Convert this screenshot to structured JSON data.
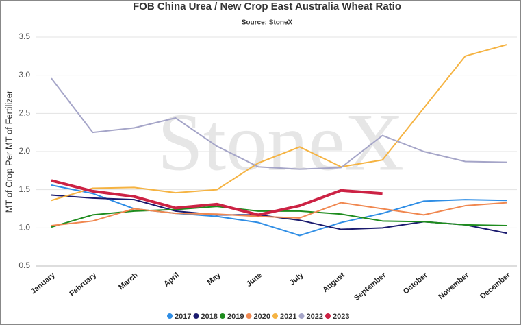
{
  "chart_data": {
    "type": "line",
    "title": "FOB China Urea / New Crop East Australia Wheat Ratio",
    "subtitle": "Source: StoneX",
    "watermark": "StoneX",
    "y_label": "MT of Crop Per MT of Fertilizer",
    "categories": [
      "January",
      "February",
      "March",
      "April",
      "May",
      "June",
      "July",
      "August",
      "September",
      "October",
      "November",
      "December"
    ],
    "series": [
      {
        "name": "2017",
        "color": "#2e8de5",
        "values": [
          1.56,
          1.45,
          1.25,
          1.19,
          1.15,
          1.07,
          0.9,
          1.07,
          1.19,
          1.35,
          1.37,
          1.36
        ]
      },
      {
        "name": "2018",
        "color": "#1a1a6e",
        "values": [
          1.43,
          1.39,
          1.37,
          1.22,
          1.17,
          1.17,
          1.1,
          0.98,
          1.0,
          1.08,
          1.04,
          0.93
        ]
      },
      {
        "name": "2019",
        "color": "#1e8c1e",
        "values": [
          1.01,
          1.17,
          1.22,
          1.24,
          1.28,
          1.22,
          1.22,
          1.18,
          1.09,
          1.08,
          1.04,
          1.03
        ]
      },
      {
        "name": "2020",
        "color": "#f0874f",
        "values": [
          1.03,
          1.09,
          1.25,
          1.19,
          1.18,
          1.15,
          1.13,
          1.33,
          1.25,
          1.17,
          1.29,
          1.33
        ]
      },
      {
        "name": "2021",
        "color": "#f5b342",
        "values": [
          1.36,
          1.52,
          1.53,
          1.46,
          1.5,
          1.85,
          2.06,
          1.8,
          1.89,
          2.57,
          3.25,
          3.4
        ]
      },
      {
        "name": "2022",
        "color": "#a5a5c8",
        "values": [
          2.96,
          2.25,
          2.31,
          2.44,
          2.07,
          1.8,
          1.77,
          1.79,
          2.21,
          2.0,
          1.87,
          1.86
        ]
      },
      {
        "name": "2023",
        "color": "#cc2244",
        "values": [
          1.62,
          1.48,
          1.41,
          1.26,
          1.31,
          1.17,
          1.29,
          1.49,
          1.45,
          null,
          null,
          null
        ]
      }
    ],
    "ylim": [
      0.5,
      3.5
    ],
    "yticks": [
      0.5,
      {
        "value": 1,
        "label": "1.0"
      },
      1.5,
      {
        "value": 2,
        "label": "2.0"
      },
      2.5,
      {
        "value": 3,
        "label": "3.0"
      },
      3.5
    ],
    "grid": true
  }
}
